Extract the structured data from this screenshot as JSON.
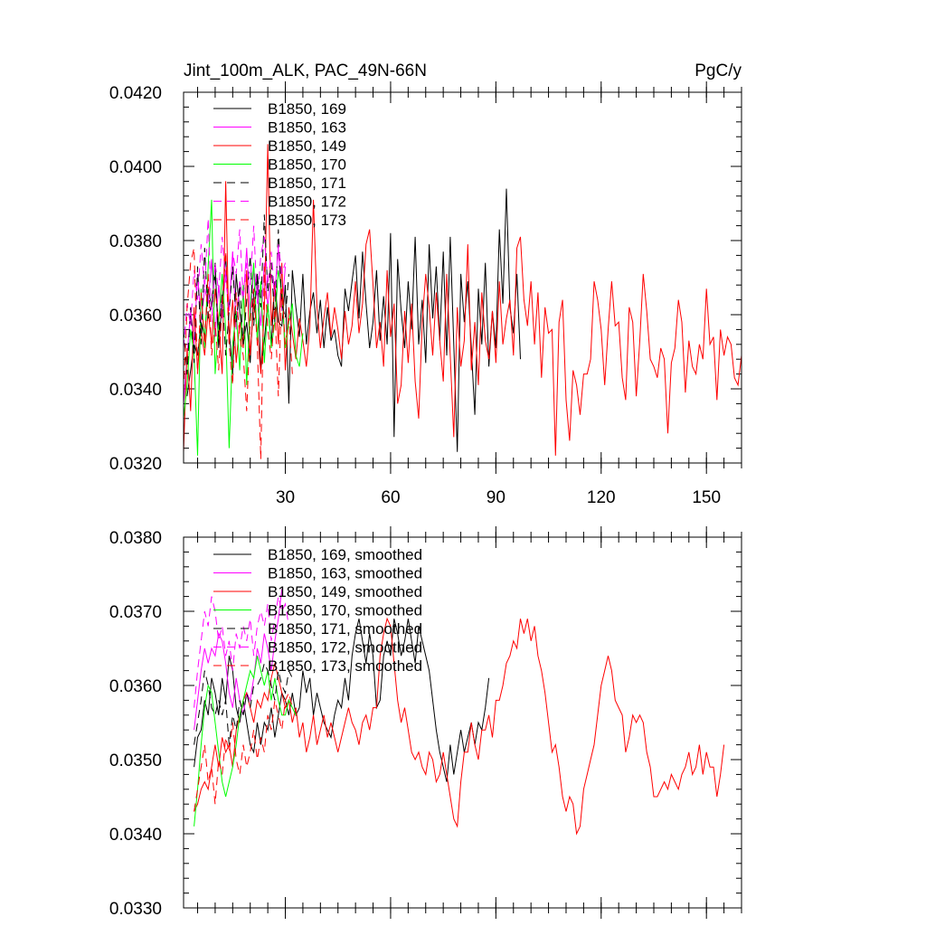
{
  "colors": {
    "B1850, 169": "#000000",
    "B1850, 163": "#ff00ff",
    "B1850, 149": "#ff0000",
    "B1850, 170": "#00ff00",
    "B1850, 171": "#000000",
    "B1850, 172": "#ff00ff",
    "B1850, 173": "#ff0000"
  },
  "chart_data": [
    {
      "type": "line",
      "title": "Jint_100m_ALK, PAC_49N-66N",
      "units": "PgC/y",
      "xlabel": "",
      "ylabel": "",
      "xlim": [
        1,
        160
      ],
      "ylim": [
        0.032,
        0.042
      ],
      "xticks": [
        30,
        60,
        90,
        120,
        150
      ],
      "xtick_labels": [
        "30",
        "60",
        "90",
        "120",
        "150"
      ],
      "yticks": [
        0.032,
        0.034,
        0.036,
        0.038,
        0.04,
        0.042
      ],
      "ytick_labels": [
        "0.0320",
        "0.0340",
        "0.0360",
        "0.0380",
        "0.0400",
        "0.0420"
      ],
      "legend_position": "top-left",
      "series": [
        {
          "name": "B1850, 169",
          "color": "#000000",
          "dash": "solid",
          "x_start": 2,
          "values": [
            0.0338,
            0.0345,
            0.0352,
            0.0349,
            0.0358,
            0.0354,
            0.0367,
            0.0362,
            0.0374,
            0.0351,
            0.0364,
            0.0376,
            0.0356,
            0.0344,
            0.0371,
            0.0361,
            0.0352,
            0.0358,
            0.0347,
            0.0366,
            0.0371,
            0.0345,
            0.0353,
            0.0363,
            0.0352,
            0.0369,
            0.0358,
            0.0357,
            0.0368,
            0.0336,
            0.0372,
            0.0362,
            0.0354,
            0.0371,
            0.0352,
            0.0361,
            0.0366,
            0.0355,
            0.0364,
            0.0351,
            0.0362,
            0.0353,
            0.0356,
            0.0349,
            0.0346,
            0.0367,
            0.0361,
            0.0369,
            0.0376,
            0.0359,
            0.0377,
            0.0363,
            0.0351,
            0.0358,
            0.0372,
            0.0353,
            0.0365,
            0.0352,
            0.0382,
            0.0327,
            0.0375,
            0.0361,
            0.0351,
            0.0369,
            0.0356,
            0.0381,
            0.0352,
            0.0364,
            0.0347,
            0.0379,
            0.0359,
            0.0373,
            0.0353,
            0.0377,
            0.0349,
            0.0381,
            0.0352,
            0.0323,
            0.0371,
            0.0358,
            0.0369,
            0.0351,
            0.0333,
            0.0367,
            0.0352,
            0.0374,
            0.0346,
            0.0361,
            0.0351,
            0.0383,
            0.0363,
            0.0394,
            0.0362,
            0.0355,
            0.0371,
            0.0348
          ]
        },
        {
          "name": "B1850, 163",
          "color": "#ff00ff",
          "dash": "solid",
          "x_start": 1,
          "values": [
            0.0336,
            0.0349,
            0.0361,
            0.0352,
            0.0371,
            0.0358,
            0.0367,
            0.0363,
            0.0375,
            0.0354,
            0.0368,
            0.0359,
            0.0372,
            0.0361,
            0.0377,
            0.0356,
            0.0369,
            0.0364,
            0.0378,
            0.0359,
            0.0372,
            0.0366,
            0.0357,
            0.0374,
            0.0362,
            0.0371,
            0.0366,
            0.0378,
            0.0361,
            0.0373
          ]
        },
        {
          "name": "B1850, 149",
          "color": "#ff0000",
          "dash": "solid",
          "x_start": 1,
          "values": [
            0.0323,
            0.0351,
            0.0334,
            0.0362,
            0.0345,
            0.0356,
            0.0349,
            0.0361,
            0.0352,
            0.0367,
            0.0358,
            0.0344,
            0.0396,
            0.0352,
            0.0364,
            0.0347,
            0.0358,
            0.0351,
            0.0372,
            0.0349,
            0.0363,
            0.0356,
            0.0344,
            0.0361,
            0.0406,
            0.0357,
            0.0368,
            0.0352,
            0.0374,
            0.0345,
            0.0362,
            0.0355,
            0.0348,
            0.0359,
            0.0353,
            0.0346,
            0.0357,
            0.0391,
            0.0362,
            0.0351,
            0.0359,
            0.0366,
            0.0354,
            0.0362,
            0.0356,
            0.0348,
            0.0361,
            0.0352,
            0.0357,
            0.0369,
            0.0355,
            0.0363,
            0.0379,
            0.0383,
            0.0368,
            0.0351,
            0.0358,
            0.0346,
            0.0372,
            0.0354,
            0.0363,
            0.0336,
            0.0341,
            0.0361,
            0.0347,
            0.0363,
            0.0342,
            0.0332,
            0.0358,
            0.0371,
            0.0362,
            0.0349,
            0.0366,
            0.0353,
            0.0342,
            0.0371,
            0.0349,
            0.0327,
            0.0362,
            0.0346,
            0.0353,
            0.0379,
            0.0345,
            0.0358,
            0.0341,
            0.0366,
            0.0353,
            0.0348,
            0.0361,
            0.0347,
            0.0369,
            0.0352,
            0.0359,
            0.0364,
            0.0349,
            0.0378,
            0.0381,
            0.0364,
            0.0357,
            0.0369,
            0.0352,
            0.0366,
            0.0343,
            0.0362,
            0.0355,
            0.0356,
            0.0322,
            0.0358,
            0.0364,
            0.0337,
            0.0326,
            0.0345,
            0.0341,
            0.0333,
            0.0344,
            0.0344,
            0.0348,
            0.0369,
            0.0364,
            0.0356,
            0.0341,
            0.0356,
            0.0369,
            0.0357,
            0.0358,
            0.0343,
            0.0337,
            0.0362,
            0.0358,
            0.0338,
            0.0353,
            0.0371,
            0.0361,
            0.0348,
            0.0346,
            0.0343,
            0.0351,
            0.0348,
            0.0328,
            0.0347,
            0.0351,
            0.0364,
            0.0358,
            0.0339,
            0.0353,
            0.0346,
            0.0344,
            0.0352,
            0.0348,
            0.0367,
            0.0352,
            0.0354,
            0.0337,
            0.0356,
            0.0349,
            0.0354,
            0.0352,
            0.0343,
            0.0341,
            0.0349,
            0.0358,
            0.0362
          ]
        },
        {
          "name": "B1850, 170",
          "color": "#00ff00",
          "dash": "solid",
          "x_start": 1,
          "values": [
            0.0332,
            0.0341,
            0.0356,
            0.0349,
            0.0322,
            0.0367,
            0.0351,
            0.0373,
            0.0391,
            0.0344,
            0.0358,
            0.0371,
            0.0356,
            0.0324,
            0.0352,
            0.0361,
            0.0345,
            0.0368,
            0.0341,
            0.0362,
            0.0374,
            0.0353,
            0.0369,
            0.0347,
            0.0363,
            0.0351,
            0.0358,
            0.0372,
            0.0366,
            0.0351,
            0.0358,
            0.0363,
            0.0349,
            0.0346,
            0.0355
          ]
        },
        {
          "name": "B1850, 171",
          "color": "#000000",
          "dash": "dash",
          "x_start": 1,
          "values": [
            0.0356,
            0.0344,
            0.0362,
            0.0347,
            0.0373,
            0.0352,
            0.0378,
            0.0359,
            0.0363,
            0.0371,
            0.0354,
            0.0366,
            0.0349,
            0.0361,
            0.0373,
            0.0358,
            0.0368,
            0.0352,
            0.0364,
            0.0376,
            0.0357,
            0.0371,
            0.0362,
            0.0387,
            0.0366,
            0.0374,
            0.0358,
            0.0383,
            0.0363,
            0.0359,
            0.0371
          ]
        },
        {
          "name": "B1850, 172",
          "color": "#ff00ff",
          "dash": "dash",
          "x_start": 1,
          "values": [
            0.0351,
            0.0363,
            0.0357,
            0.0372,
            0.0364,
            0.0379,
            0.0367,
            0.0386,
            0.0358,
            0.0374,
            0.0366,
            0.0381,
            0.0369,
            0.0362,
            0.0377,
            0.0371,
            0.0383,
            0.0364,
            0.0374,
            0.0368,
            0.0384,
            0.0363,
            0.0376,
            0.0381,
            0.0368,
            0.0377,
            0.0365,
            0.0379,
            0.0371,
            0.0374
          ]
        },
        {
          "name": "B1850, 173",
          "color": "#ff0000",
          "dash": "dash",
          "x_start": 1,
          "values": [
            0.0339,
            0.0362,
            0.0374,
            0.0378,
            0.0344,
            0.0366,
            0.0352,
            0.0371,
            0.0349,
            0.0358,
            0.0345,
            0.0363,
            0.0377,
            0.0352,
            0.0341,
            0.0366,
            0.0354,
            0.0349,
            0.0334,
            0.0358,
            0.0367,
            0.0352,
            0.0321,
            0.0373,
            0.0356,
            0.0348,
            0.0362,
            0.0338,
            0.0367,
            0.0352,
            0.0359,
            0.0344
          ]
        }
      ]
    },
    {
      "type": "line",
      "title": "",
      "xlabel": "",
      "ylabel": "",
      "xlim": [
        1,
        160
      ],
      "ylim": [
        0.033,
        0.038
      ],
      "xticks": [
        30,
        60,
        90,
        120,
        150
      ],
      "xtick_labels": [],
      "yticks": [
        0.033,
        0.034,
        0.035,
        0.036,
        0.037,
        0.038
      ],
      "ytick_labels": [
        "0.0330",
        "0.0340",
        "0.0350",
        "0.0360",
        "0.0370",
        "0.0380"
      ],
      "legend_position": "top-left",
      "series": [
        {
          "name": "B1850, 169, smoothed",
          "color": "#000000",
          "dash": "solid",
          "x_start": 4,
          "values": [
            0.0349,
            0.0353,
            0.0354,
            0.0358,
            0.0356,
            0.0361,
            0.0359,
            0.0356,
            0.0361,
            0.0358,
            0.0364,
            0.0362,
            0.0357,
            0.0355,
            0.0358,
            0.0355,
            0.0352,
            0.0351,
            0.0355,
            0.0352,
            0.0355,
            0.0354,
            0.0357,
            0.0353,
            0.0356,
            0.0359,
            0.0358,
            0.0356,
            0.0359,
            0.0356,
            0.0357,
            0.0362,
            0.0359,
            0.0361,
            0.0356,
            0.0359,
            0.0357,
            0.0355,
            0.0354,
            0.0353,
            0.0356,
            0.0358,
            0.0357,
            0.0361,
            0.0358,
            0.0364,
            0.0367,
            0.0369,
            0.0366,
            0.0363,
            0.0367,
            0.0364,
            0.0357,
            0.0358,
            0.0364,
            0.0366,
            0.0364,
            0.0369,
            0.0367,
            0.0364,
            0.0366,
            0.0369,
            0.0366,
            0.0363,
            0.0368,
            0.0366,
            0.0364,
            0.0362,
            0.0358,
            0.0354,
            0.0351,
            0.0349,
            0.0347,
            0.0352,
            0.0348,
            0.0351,
            0.0354,
            0.0351,
            0.0353,
            0.0355,
            0.0352,
            0.0355,
            0.0354,
            0.0357,
            0.0361
          ]
        },
        {
          "name": "B1850, 163, smoothed",
          "color": "#ff00ff",
          "dash": "solid",
          "x_start": 4,
          "values": [
            0.0354,
            0.0358,
            0.0362,
            0.0365,
            0.0363,
            0.0365,
            0.0364,
            0.0367,
            0.0366,
            0.0363,
            0.0359,
            0.0357,
            0.0361,
            0.0358,
            0.0356,
            0.0359,
            0.0358,
            0.0361,
            0.0365,
            0.0363,
            0.0367,
            0.0365,
            0.0362,
            0.0366,
            0.0369,
            0.0373
          ]
        },
        {
          "name": "B1850, 149, smoothed",
          "color": "#ff0000",
          "dash": "solid",
          "x_start": 4,
          "values": [
            0.0343,
            0.0344,
            0.0346,
            0.0347,
            0.0346,
            0.0349,
            0.0352,
            0.0349,
            0.0353,
            0.0351,
            0.0352,
            0.0349,
            0.0354,
            0.0356,
            0.0358,
            0.0359,
            0.0357,
            0.0355,
            0.0358,
            0.0357,
            0.0359,
            0.0358,
            0.0361,
            0.0363,
            0.0361,
            0.0359,
            0.0357,
            0.0358,
            0.0355,
            0.0357,
            0.0353,
            0.0355,
            0.0351,
            0.0353,
            0.0356,
            0.0352,
            0.0354,
            0.0356,
            0.0353,
            0.0355,
            0.0353,
            0.0351,
            0.0353,
            0.0355,
            0.0357,
            0.0355,
            0.0354,
            0.0352,
            0.0355,
            0.0356,
            0.0354,
            0.0357,
            0.0357,
            0.0364,
            0.0367,
            0.0369,
            0.0368,
            0.0363,
            0.0358,
            0.0355,
            0.0357,
            0.0354,
            0.0351,
            0.035,
            0.0351,
            0.0349,
            0.0348,
            0.0351,
            0.035,
            0.0347,
            0.0348,
            0.0351,
            0.0348,
            0.0345,
            0.0342,
            0.0341,
            0.0347,
            0.0351,
            0.0351,
            0.0355,
            0.0352,
            0.035,
            0.0354,
            0.0354,
            0.0356,
            0.0353,
            0.0358,
            0.0358,
            0.036,
            0.0363,
            0.0364,
            0.0366,
            0.0365,
            0.0369,
            0.0367,
            0.0369,
            0.0366,
            0.0368,
            0.0364,
            0.0362,
            0.0359,
            0.0355,
            0.0351,
            0.0352,
            0.0349,
            0.0345,
            0.0343,
            0.0345,
            0.0344,
            0.034,
            0.0341,
            0.0346,
            0.0348,
            0.035,
            0.0352,
            0.0356,
            0.036,
            0.0362,
            0.0364,
            0.0362,
            0.0358,
            0.0357,
            0.0356,
            0.0351,
            0.0353,
            0.0356,
            0.0355,
            0.0356,
            0.0355,
            0.0351,
            0.0349,
            0.0345,
            0.0345,
            0.0346,
            0.0347,
            0.0346,
            0.0348,
            0.0347,
            0.0346,
            0.0348,
            0.0349,
            0.0351,
            0.0348,
            0.0349,
            0.0352,
            0.0348,
            0.0351,
            0.0349,
            0.0349,
            0.0345,
            0.0348,
            0.0352
          ]
        },
        {
          "name": "B1850, 170, smoothed",
          "color": "#00ff00",
          "dash": "solid",
          "x_start": 4,
          "values": [
            0.0341,
            0.0346,
            0.0352,
            0.0357,
            0.036,
            0.0359,
            0.0355,
            0.0351,
            0.0347,
            0.0345,
            0.0347,
            0.0349,
            0.0352,
            0.0356,
            0.0358,
            0.036,
            0.0362,
            0.0361,
            0.0364,
            0.0362,
            0.036,
            0.0362,
            0.0358,
            0.0361,
            0.0358,
            0.0356,
            0.0356,
            0.0358,
            0.0357,
            0.0356
          ]
        },
        {
          "name": "B1850, 171, smoothed",
          "color": "#000000",
          "dash": "dash",
          "x_start": 4,
          "values": [
            0.0352,
            0.0355,
            0.0358,
            0.0362,
            0.036,
            0.0357,
            0.0356,
            0.0358,
            0.0356,
            0.0358,
            0.0352,
            0.0356,
            0.0354,
            0.0358,
            0.0356,
            0.0359,
            0.0357,
            0.036,
            0.036,
            0.0361,
            0.0363,
            0.0362,
            0.036,
            0.0358,
            0.0362,
            0.036,
            0.0359,
            0.0362,
            0.0361
          ]
        },
        {
          "name": "B1850, 172, smoothed",
          "color": "#ff00ff",
          "dash": "dash",
          "x_start": 4,
          "values": [
            0.0357,
            0.0362,
            0.0366,
            0.037,
            0.0368,
            0.0372,
            0.037,
            0.0366,
            0.0368,
            0.0364,
            0.0366,
            0.0362,
            0.0367,
            0.0365,
            0.0368,
            0.0366,
            0.0369,
            0.0364,
            0.0368,
            0.037,
            0.0368,
            0.0371,
            0.0366,
            0.0369,
            0.0372,
            0.037,
            0.0371,
            0.0368
          ]
        },
        {
          "name": "B1850, 173, smoothed",
          "color": "#ff0000",
          "dash": "dash",
          "x_start": 4,
          "values": [
            0.0343,
            0.0346,
            0.0349,
            0.0352,
            0.0347,
            0.0349,
            0.0344,
            0.035,
            0.0348,
            0.0353,
            0.0351,
            0.0355,
            0.035,
            0.0348,
            0.0352,
            0.0349,
            0.0351,
            0.0354,
            0.035,
            0.0353,
            0.0351,
            0.0356,
            0.0354,
            0.0358,
            0.0356,
            0.0354,
            0.0358,
            0.0359,
            0.0357
          ]
        }
      ]
    }
  ]
}
